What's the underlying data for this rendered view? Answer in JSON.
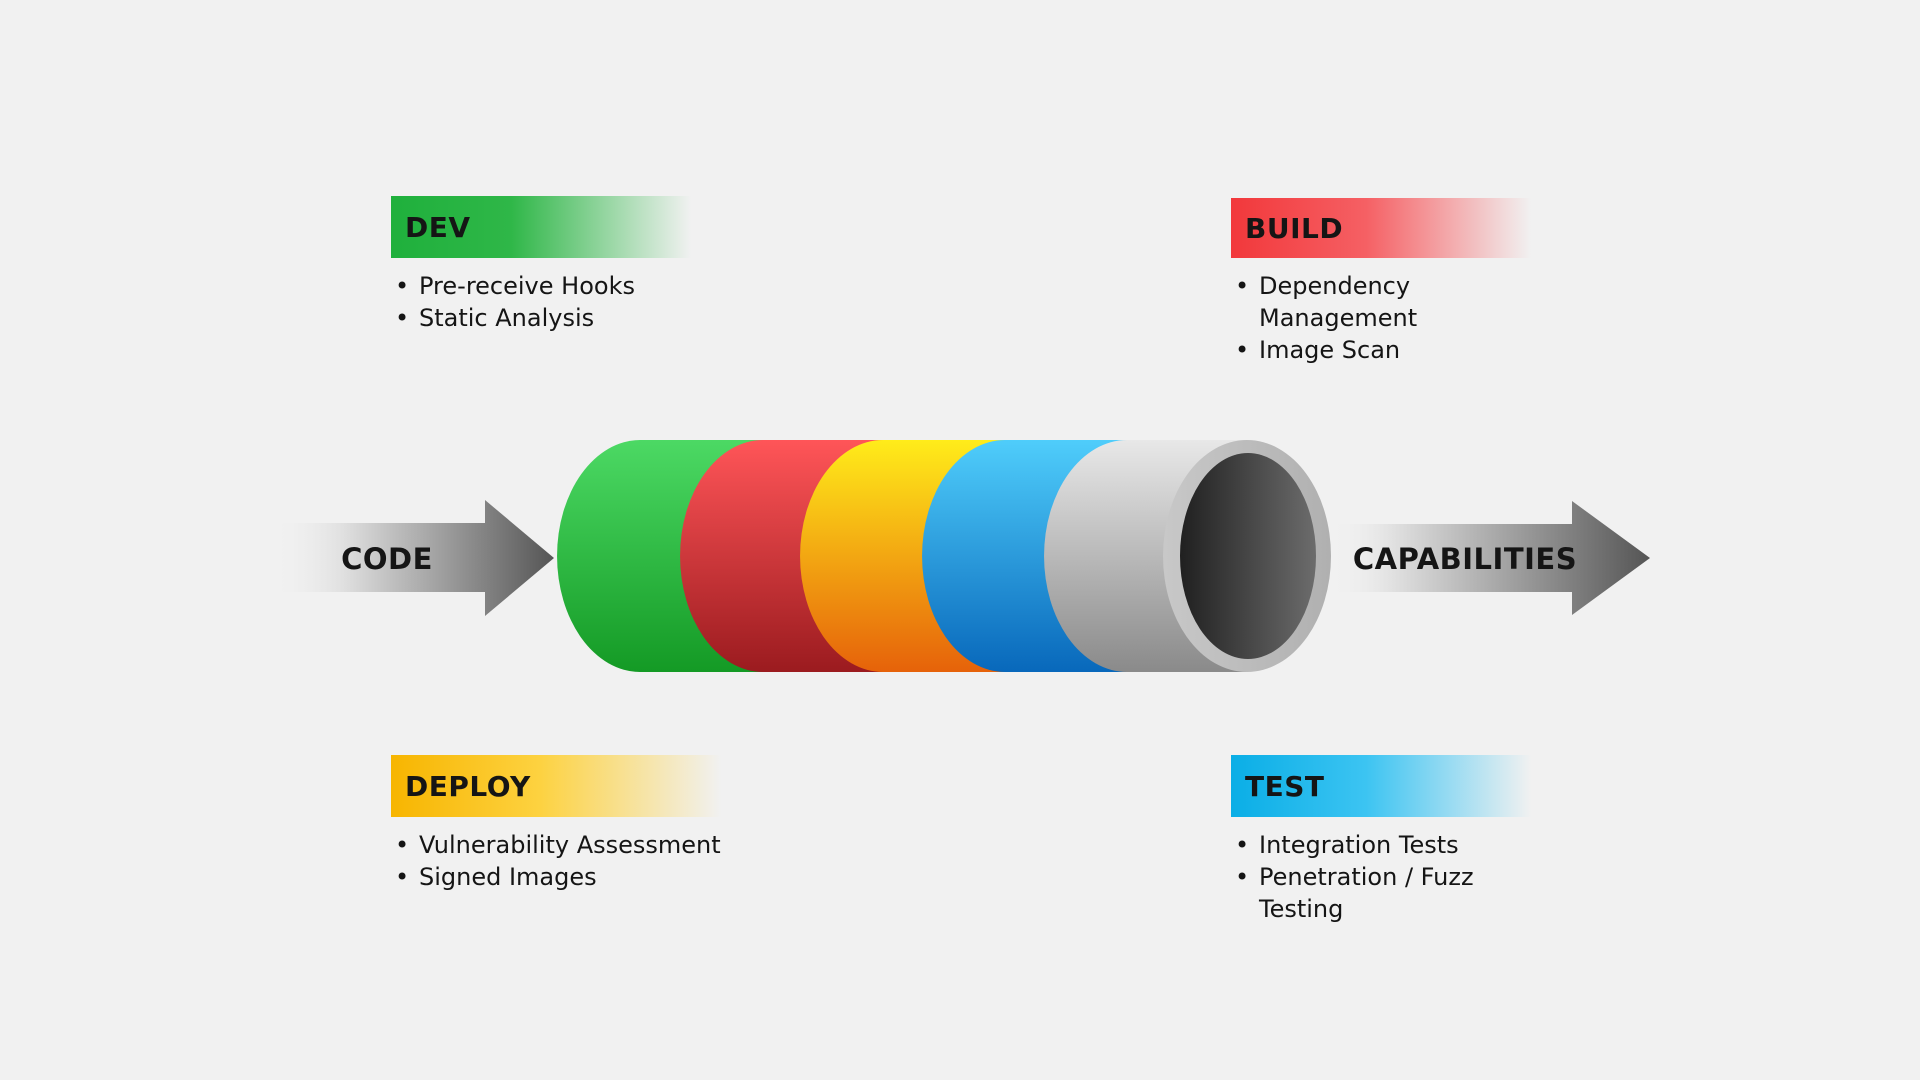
{
  "input_arrow": {
    "label": "CODE"
  },
  "output_arrow": {
    "label": "CAPABILITIES"
  },
  "stages": {
    "dev": {
      "title": "DEV",
      "color": "#22b03f",
      "items": [
        "Pre-receive Hooks",
        "Static Analysis"
      ]
    },
    "build": {
      "title": "BUILD",
      "color": "#f33a3d",
      "items": [
        "Dependency Management",
        "Image Scan"
      ]
    },
    "deploy": {
      "title": "DEPLOY",
      "color": "#f7b500",
      "items": [
        "Vulnerability Assessment",
        "Signed Images"
      ]
    },
    "test": {
      "title": "TEST",
      "color": "#0ab0e8",
      "items": [
        "Integration Tests",
        "Penetration / Fuzz Testing"
      ]
    }
  },
  "bullet_glyph": "•"
}
